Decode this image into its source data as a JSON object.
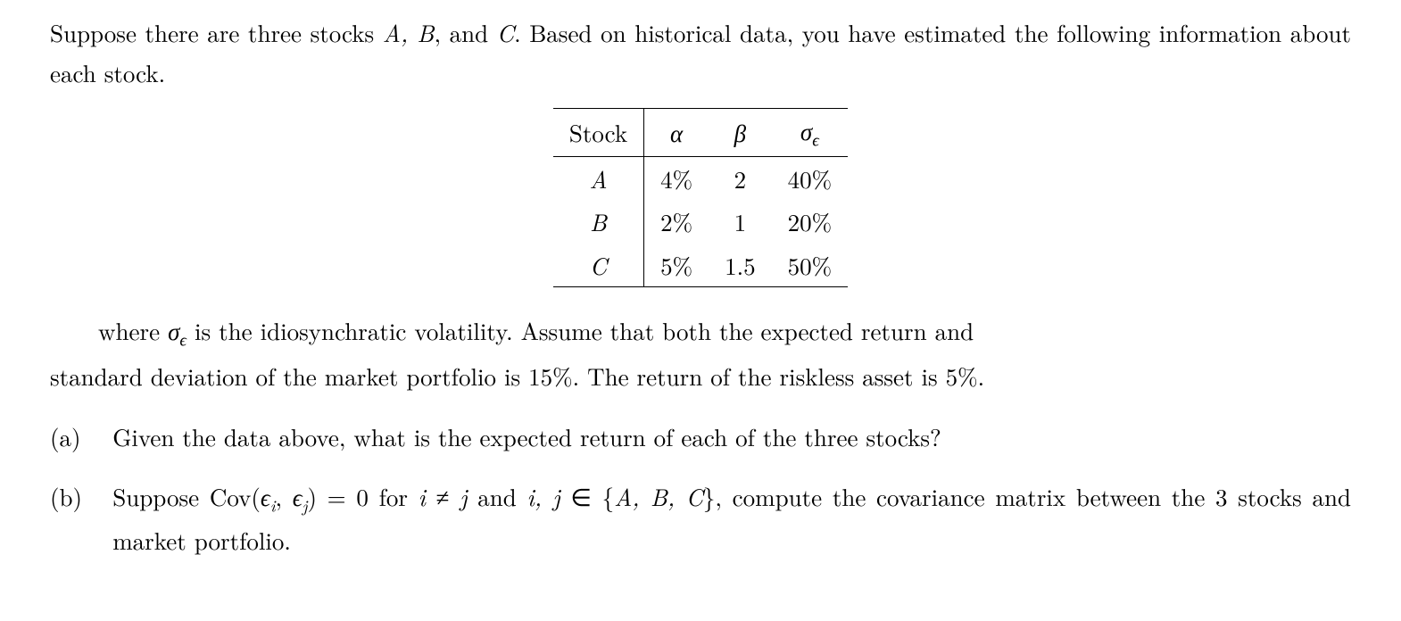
{
  "intro": "Suppose there are three stocks A, B, and C. Based on historical data, you have estimated the following information about each stock.",
  "intro_parts": {
    "p1": "Suppose there are three stocks ",
    "stocksAB": "A, B",
    "mid": ", and ",
    "stockC": "C",
    "p2": ". Based on historical data, you have estimated the following information about each stock."
  },
  "table": {
    "header": {
      "c0": "Stock",
      "c1": "α",
      "c2": "β",
      "c3_sigma": "σ",
      "c3_sub": "ϵ"
    },
    "rows": [
      {
        "stock": "A",
        "alpha": "4%",
        "beta": "2",
        "sigma": "40%"
      },
      {
        "stock": "B",
        "alpha": "2%",
        "beta": "1",
        "sigma": "20%"
      },
      {
        "stock": "C",
        "alpha": "5%",
        "beta": "1.5",
        "sigma": "50%"
      }
    ]
  },
  "where": {
    "pre": "where ",
    "sigma": "σ",
    "sigma_sub": "ϵ",
    "post1": " is the idiosynchratic volatility.  Assume that both the expected return and",
    "post2": "standard deviation of the market portfolio is 15%. The return of the riskless asset is 5%."
  },
  "qa": {
    "label": "(a)",
    "text": "Given the data above, what is the expected return of each of the three stocks?"
  },
  "qb": {
    "label": "(b)",
    "t1": "Suppose Cov(",
    "e1": "ϵ",
    "s1": "i",
    "comma": ", ",
    "e2": "ϵ",
    "s2": "j",
    "t2": ") = 0 for ",
    "i": "i",
    "neq": " ≠ ",
    "j": "j",
    "t3": " and ",
    "ij": "i, j",
    "in": " ∈ {",
    "set": "A, B, C",
    "t4": "}, compute the covariance matrix between the 3 stocks and market portfolio."
  }
}
